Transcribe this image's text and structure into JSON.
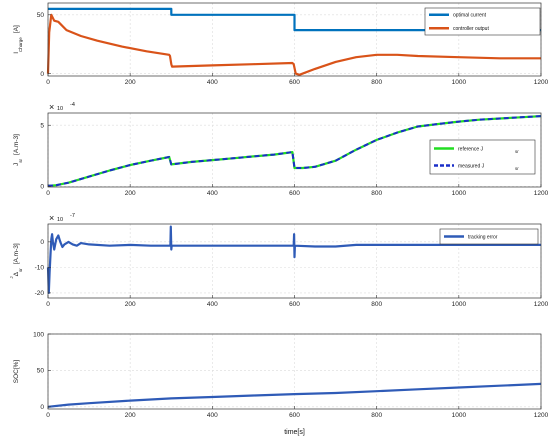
{
  "chart_data": [
    {
      "type": "line",
      "ylabel": "I",
      "ylabel_sub": "Charge",
      "ylabel_unit": "[A]",
      "xlim": [
        0,
        1200
      ],
      "ylim": [
        -2,
        60
      ],
      "yticks": [
        0,
        50
      ],
      "xticks": [
        0,
        200,
        400,
        600,
        800,
        1000,
        1200
      ],
      "grid": true,
      "legend_position": "top-right",
      "series": [
        {
          "name": "optimal current",
          "color": "#0072BD",
          "points": [
            [
              0,
              55
            ],
            [
              300,
              55
            ],
            [
              300,
              50
            ],
            [
              600,
              50
            ],
            [
              600,
              37
            ],
            [
              1200,
              37
            ]
          ]
        },
        {
          "name": "controller output",
          "color": "#D95319",
          "points": [
            [
              0,
              0
            ],
            [
              3,
              35
            ],
            [
              8,
              50
            ],
            [
              15,
              45
            ],
            [
              25,
              44
            ],
            [
              45,
              37
            ],
            [
              80,
              32
            ],
            [
              120,
              28
            ],
            [
              180,
              23
            ],
            [
              240,
              19
            ],
            [
              295,
              16
            ],
            [
              297,
              15
            ],
            [
              300,
              8
            ],
            [
              302,
              6
            ],
            [
              400,
              7
            ],
            [
              500,
              8
            ],
            [
              595,
              9
            ],
            [
              598,
              8
            ],
            [
              603,
              0
            ],
            [
              612,
              -1
            ],
            [
              650,
              4
            ],
            [
              700,
              10
            ],
            [
              750,
              14
            ],
            [
              800,
              16
            ],
            [
              850,
              16
            ],
            [
              900,
              15
            ],
            [
              1000,
              14
            ],
            [
              1100,
              13
            ],
            [
              1200,
              13
            ]
          ]
        }
      ]
    },
    {
      "type": "line",
      "ylabel": "J",
      "ylabel_sub": "sr",
      "ylabel_unit": "[A.m-3]",
      "exponent": "-4",
      "xlim": [
        0,
        1200
      ],
      "ylim": [
        -0.05,
        6
      ],
      "yticks": [
        0,
        5
      ],
      "xticks": [
        0,
        200,
        400,
        600,
        800,
        1000,
        1200
      ],
      "grid": true,
      "legend_position": "bottom-right",
      "legend_sub": "sr",
      "series": [
        {
          "name": "reference J",
          "color": "#22DD22",
          "style": "solid",
          "points": [
            [
              0,
              0.05
            ],
            [
              20,
              0.1
            ],
            [
              50,
              0.3
            ],
            [
              100,
              0.8
            ],
            [
              150,
              1.3
            ],
            [
              200,
              1.75
            ],
            [
              250,
              2.1
            ],
            [
              295,
              2.4
            ],
            [
              300,
              1.8
            ],
            [
              350,
              2.0
            ],
            [
              400,
              2.15
            ],
            [
              450,
              2.3
            ],
            [
              500,
              2.45
            ],
            [
              550,
              2.6
            ],
            [
              595,
              2.8
            ],
            [
              600,
              1.5
            ],
            [
              620,
              1.5
            ],
            [
              650,
              1.6
            ],
            [
              700,
              2.1
            ],
            [
              750,
              3.0
            ],
            [
              800,
              3.8
            ],
            [
              850,
              4.4
            ],
            [
              900,
              4.9
            ],
            [
              950,
              5.1
            ],
            [
              1000,
              5.3
            ],
            [
              1050,
              5.45
            ],
            [
              1100,
              5.55
            ],
            [
              1150,
              5.65
            ],
            [
              1200,
              5.75
            ]
          ]
        },
        {
          "name": "measured J",
          "color": "#1A2EC8",
          "style": "dashed",
          "points": [
            [
              0,
              0.05
            ],
            [
              20,
              0.1
            ],
            [
              50,
              0.3
            ],
            [
              100,
              0.8
            ],
            [
              150,
              1.3
            ],
            [
              200,
              1.75
            ],
            [
              250,
              2.1
            ],
            [
              295,
              2.4
            ],
            [
              300,
              1.8
            ],
            [
              350,
              2.0
            ],
            [
              400,
              2.15
            ],
            [
              450,
              2.3
            ],
            [
              500,
              2.45
            ],
            [
              550,
              2.6
            ],
            [
              595,
              2.8
            ],
            [
              600,
              1.5
            ],
            [
              620,
              1.5
            ],
            [
              650,
              1.6
            ],
            [
              700,
              2.1
            ],
            [
              750,
              3.0
            ],
            [
              800,
              3.8
            ],
            [
              850,
              4.4
            ],
            [
              900,
              4.9
            ],
            [
              950,
              5.1
            ],
            [
              1000,
              5.3
            ],
            [
              1050,
              5.45
            ],
            [
              1100,
              5.55
            ],
            [
              1150,
              5.65
            ],
            [
              1200,
              5.75
            ]
          ]
        }
      ]
    },
    {
      "type": "line",
      "ylabel": "Δ",
      "ylabel_sup": "J",
      "ylabel_sub": "sr",
      "ylabel_unit": "[A.m-3]",
      "exponent": "-7",
      "xlim": [
        0,
        1200
      ],
      "ylim": [
        -22,
        7
      ],
      "yticks": [
        -20,
        -10,
        0
      ],
      "xticks": [
        0,
        200,
        400,
        600,
        800,
        1000,
        1200
      ],
      "grid": true,
      "legend_position": "top-right",
      "series": [
        {
          "name": "tracking error",
          "color": "#2F5BB7",
          "points": [
            [
              0,
              -10
            ],
            [
              2,
              -20
            ],
            [
              4,
              -12
            ],
            [
              6,
              -5
            ],
            [
              8,
              1
            ],
            [
              10,
              3
            ],
            [
              12,
              0
            ],
            [
              15,
              -3
            ],
            [
              20,
              1
            ],
            [
              25,
              2.5
            ],
            [
              30,
              0
            ],
            [
              35,
              -2
            ],
            [
              40,
              -1
            ],
            [
              50,
              0
            ],
            [
              60,
              -1
            ],
            [
              70,
              -1.5
            ],
            [
              80,
              -0.5
            ],
            [
              100,
              -1
            ],
            [
              150,
              -1.5
            ],
            [
              200,
              -1.2
            ],
            [
              250,
              -1.5
            ],
            [
              298,
              -1.5
            ],
            [
              299,
              6
            ],
            [
              300,
              -3
            ],
            [
              301,
              -1.5
            ],
            [
              400,
              -1.5
            ],
            [
              500,
              -1.5
            ],
            [
              598,
              -1.5
            ],
            [
              599,
              3
            ],
            [
              600,
              -6
            ],
            [
              601,
              -1.5
            ],
            [
              650,
              -1.8
            ],
            [
              700,
              -1.8
            ],
            [
              750,
              -1.2
            ],
            [
              800,
              -1.2
            ],
            [
              900,
              -1.2
            ],
            [
              1000,
              -1.2
            ],
            [
              1100,
              -1.2
            ],
            [
              1200,
              -1.2
            ]
          ]
        }
      ]
    },
    {
      "type": "line",
      "ylabel": "SOC[%]",
      "xlabel": "time[s]",
      "xlim": [
        0,
        1200
      ],
      "ylim": [
        -3,
        100
      ],
      "yticks": [
        0,
        50,
        100
      ],
      "xticks": [
        0,
        200,
        400,
        600,
        800,
        1000,
        1200
      ],
      "grid": true,
      "series": [
        {
          "name": "",
          "color": "#2F5BB7",
          "points": [
            [
              0,
              0
            ],
            [
              50,
              3
            ],
            [
              100,
              5
            ],
            [
              200,
              8.5
            ],
            [
              300,
              11.5
            ],
            [
              400,
              13.5
            ],
            [
              500,
              15.5
            ],
            [
              600,
              17.5
            ],
            [
              700,
              19
            ],
            [
              800,
              21.5
            ],
            [
              900,
              24
            ],
            [
              1000,
              26.5
            ],
            [
              1100,
              29
            ],
            [
              1200,
              31.5
            ]
          ]
        }
      ]
    }
  ]
}
